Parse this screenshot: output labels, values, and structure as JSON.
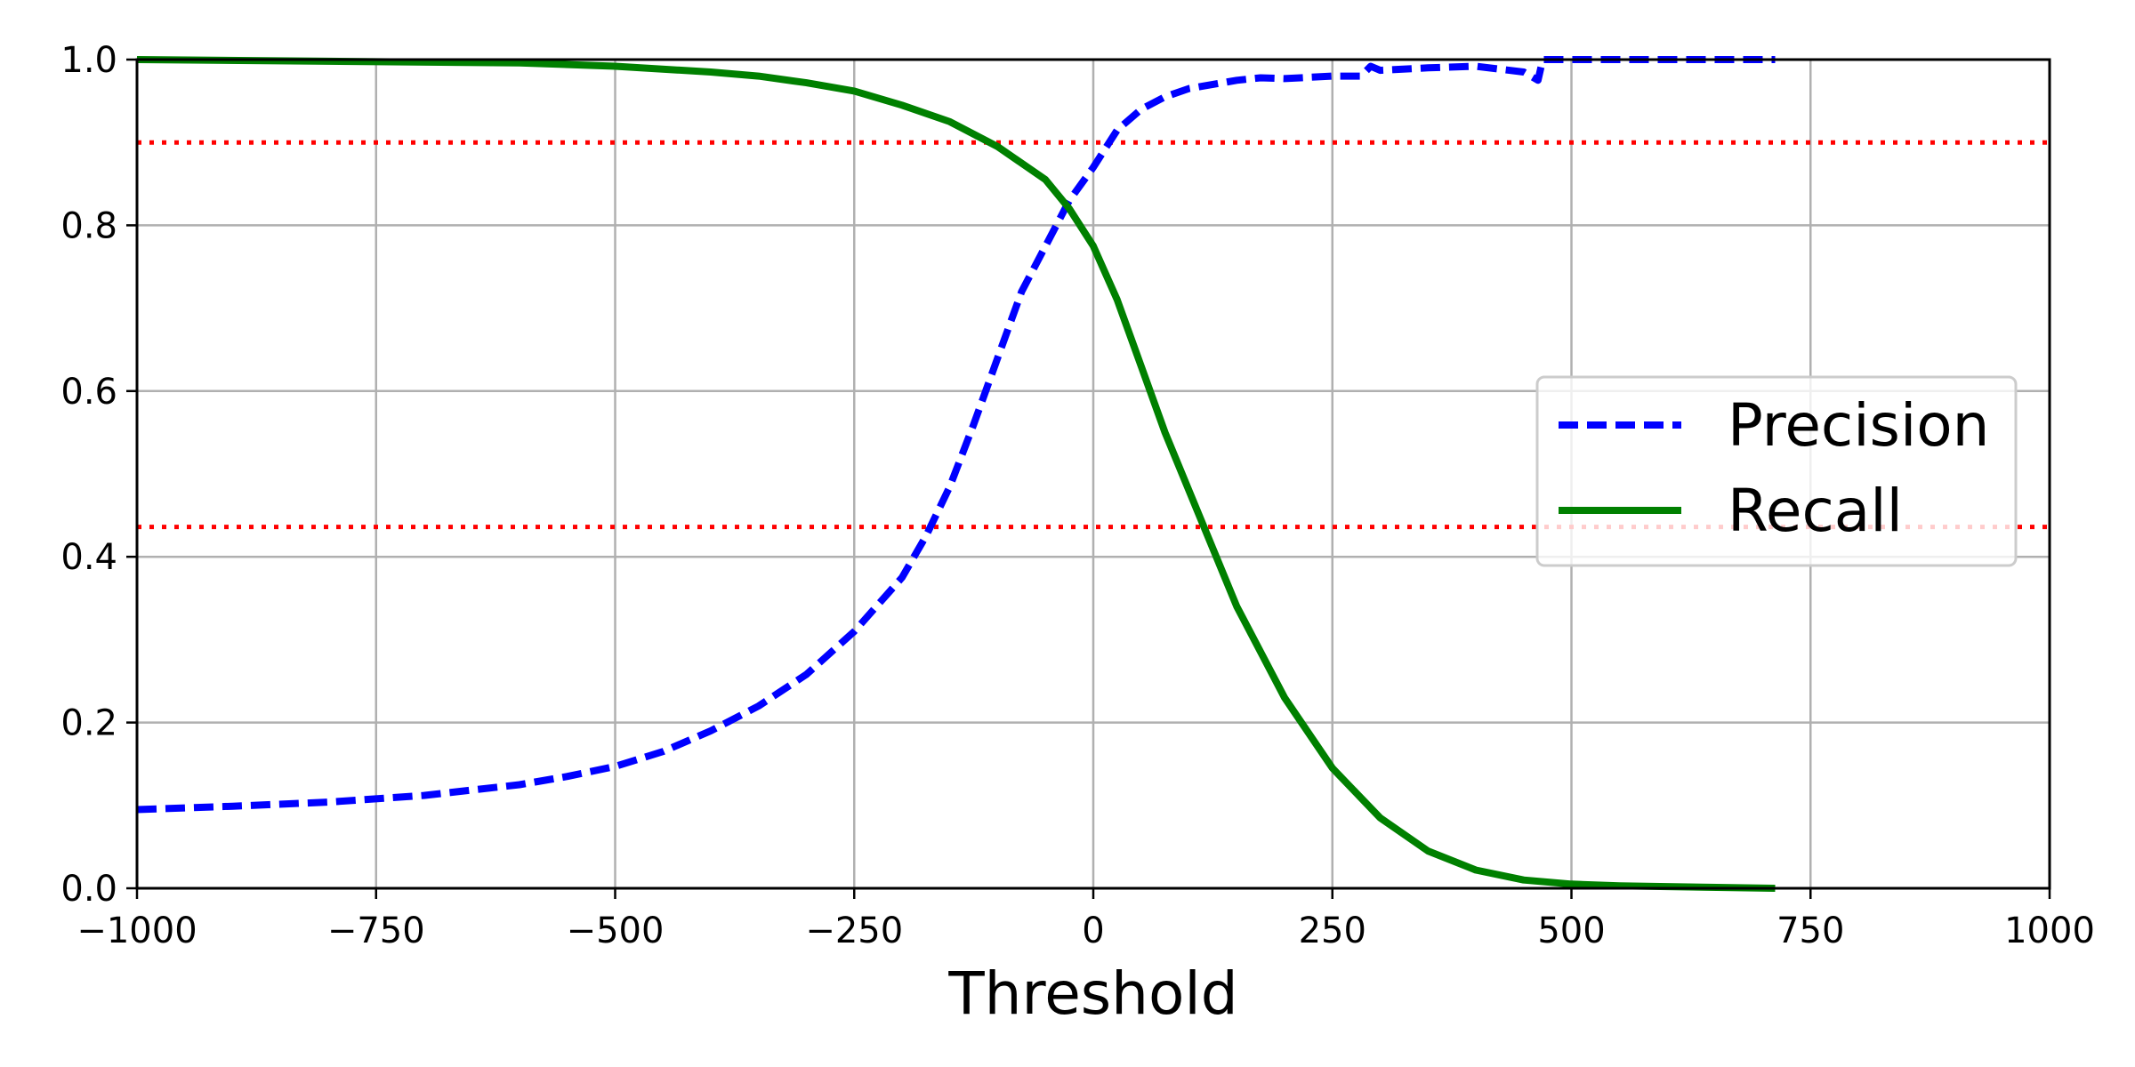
{
  "chart_data": {
    "type": "line",
    "title": "",
    "xlabel": "Threshold",
    "ylabel": "",
    "xlim": [
      -1000,
      1000
    ],
    "ylim": [
      0,
      1
    ],
    "grid": true,
    "legend_position": "center-right",
    "x_ticks": [
      -1000,
      -750,
      -500,
      -250,
      0,
      250,
      500,
      750,
      1000
    ],
    "x_tick_labels": [
      "−1000",
      "−750",
      "−500",
      "−250",
      "0",
      "250",
      "500",
      "750",
      "1000"
    ],
    "y_ticks": [
      0,
      0.2,
      0.4,
      0.6,
      0.8,
      1.0
    ],
    "y_tick_labels": [
      "0.0",
      "0.2",
      "0.4",
      "0.6",
      "0.8",
      "1.0"
    ],
    "series": [
      {
        "name": "Precision",
        "style": "dashed",
        "color": "#0000ff",
        "x": [
          -1000,
          -900,
          -800,
          -700,
          -600,
          -550,
          -500,
          -450,
          -400,
          -350,
          -300,
          -250,
          -200,
          -175,
          -150,
          -125,
          -100,
          -75,
          -50,
          -25,
          0,
          25,
          50,
          75,
          100,
          150,
          175,
          200,
          250,
          280,
          290,
          300,
          350,
          400,
          450,
          465,
          468,
          470,
          500,
          600,
          713
        ],
        "y": [
          0.095,
          0.099,
          0.104,
          0.112,
          0.125,
          0.135,
          0.147,
          0.165,
          0.19,
          0.22,
          0.258,
          0.31,
          0.375,
          0.425,
          0.485,
          0.56,
          0.64,
          0.72,
          0.775,
          0.83,
          0.87,
          0.915,
          0.94,
          0.955,
          0.965,
          0.975,
          0.978,
          0.977,
          0.98,
          0.98,
          0.992,
          0.987,
          0.99,
          0.992,
          0.985,
          0.975,
          0.99,
          1.0,
          1.0,
          1.0,
          1.0
        ]
      },
      {
        "name": "Recall",
        "style": "solid",
        "color": "#008000",
        "x": [
          -1000,
          -800,
          -600,
          -500,
          -400,
          -350,
          -300,
          -250,
          -200,
          -150,
          -100,
          -50,
          -25,
          0,
          25,
          50,
          75,
          100,
          125,
          150,
          200,
          250,
          300,
          350,
          400,
          450,
          500,
          550,
          600,
          713
        ],
        "y": [
          1.0,
          0.998,
          0.996,
          0.992,
          0.985,
          0.98,
          0.972,
          0.962,
          0.945,
          0.925,
          0.895,
          0.855,
          0.82,
          0.775,
          0.71,
          0.63,
          0.55,
          0.48,
          0.41,
          0.34,
          0.23,
          0.145,
          0.085,
          0.045,
          0.022,
          0.01,
          0.005,
          0.003,
          0.002,
          0.0
        ]
      }
    ],
    "reference_lines": [
      {
        "axis": "y",
        "value": 0.9,
        "style": "dotted",
        "color": "#ff0000"
      },
      {
        "axis": "y",
        "value": 0.436,
        "style": "dotted",
        "color": "#ff0000"
      }
    ]
  }
}
